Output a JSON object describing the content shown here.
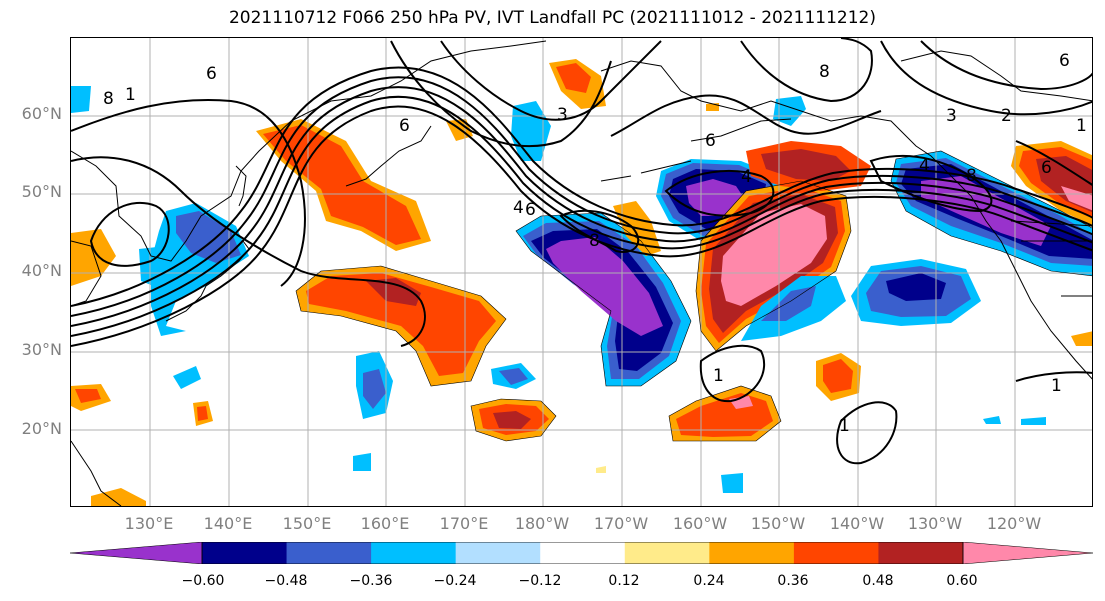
{
  "title": "2021110712 F066 250 hPa PV, IVT Landfall PC (2021111012 - 2021111212)",
  "lat_labels": [
    "60°N",
    "50°N",
    "40°N",
    "30°N",
    "20°N"
  ],
  "lon_labels": [
    "130°E",
    "140°E",
    "150°E",
    "160°E",
    "170°E",
    "180°W",
    "170°W",
    "160°W",
    "150°W",
    "140°W",
    "130°W",
    "120°W"
  ],
  "colorbar": {
    "colors": [
      "#9932CC",
      "#00008B",
      "#3A5FCD",
      "#00BFFF",
      "#B2DFFF",
      "#FFFFFF",
      "#FFEB8A",
      "#FFA500",
      "#FF4500",
      "#B22222",
      "#FF88AA"
    ],
    "tick_labels": [
      "−0.60",
      "−0.48",
      "−0.36",
      "−0.24",
      "−0.12",
      "0.12",
      "0.24",
      "0.36",
      "0.48",
      "0.60"
    ]
  },
  "contour_labels": [
    "6",
    "8",
    "1",
    "6",
    "3",
    "4",
    "8",
    "6",
    "4",
    "1",
    "1",
    "3",
    "2",
    "6",
    "6",
    "8",
    "8",
    "1",
    "1",
    "6",
    "4"
  ]
}
